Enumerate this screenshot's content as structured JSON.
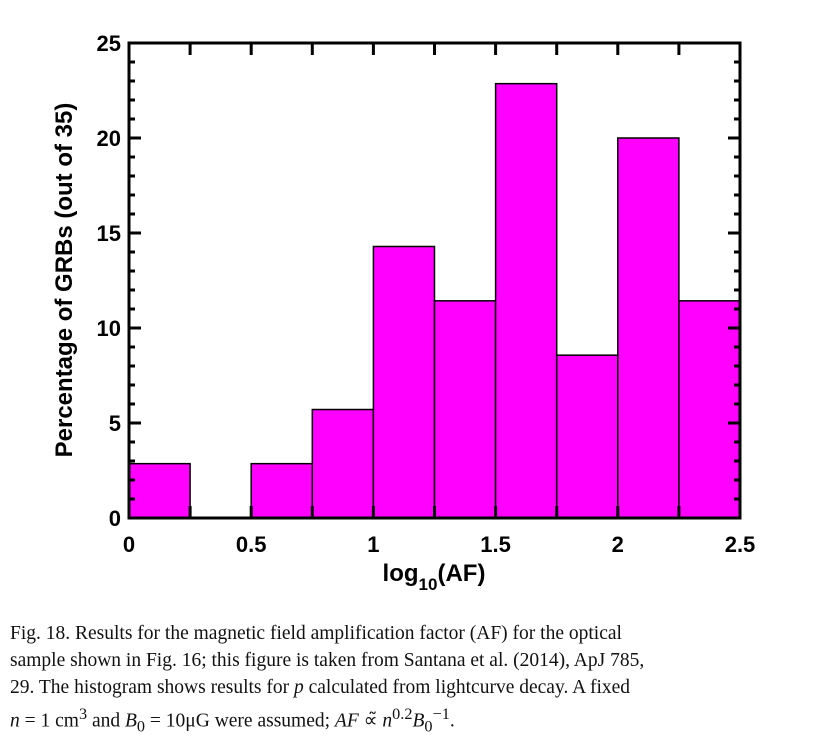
{
  "chart_data": {
    "type": "bar",
    "subtype": "histogram",
    "bin_edges": [
      0,
      0.25,
      0.5,
      0.75,
      1.0,
      1.25,
      1.5,
      1.75,
      2.0,
      2.25,
      2.5
    ],
    "values": [
      2.86,
      0,
      2.86,
      5.71,
      14.29,
      11.43,
      22.86,
      8.57,
      20.0,
      11.43
    ],
    "xlim": [
      0,
      2.5
    ],
    "ylim": [
      0,
      25
    ],
    "xticks": [
      0,
      0.5,
      1,
      1.5,
      2,
      2.5
    ],
    "xtick_labels": [
      "0",
      "0.5",
      "1",
      "1.5",
      "2",
      "2.5"
    ],
    "yticks": [
      0,
      5,
      10,
      15,
      20,
      25
    ],
    "ytick_labels": [
      "0",
      "5",
      "10",
      "15",
      "20",
      "25"
    ],
    "xlabel_main": "log",
    "xlabel_sub": "10",
    "xlabel_tail": "(AF)",
    "ylabel": "Percentage of GRBs (out of 35)",
    "bar_color": "#ff00ff",
    "edge_color": "#000000",
    "grid": false,
    "legend": "none"
  },
  "caption": {
    "line1": "Fig. 18. Results for the magnetic field amplification factor (AF) for the optical",
    "line2": "sample shown in Fig. 16; this figure is taken from Santana et al. (2014), ApJ 785,",
    "line3_a": "29. The histogram shows results for ",
    "line3_p": "p",
    "line3_b": " calculated from lightcurve decay. A fixed",
    "line4_n": "n",
    "line4_eq1": " = 1 cm",
    "line4_exp3": "3",
    "line4_and": " and ",
    "line4_B": "B",
    "line4_B_sub": "0",
    "line4_eq2": " = 10μG were assumed; ",
    "line4_AF": "AF",
    "line4_prop": " ∝̃ ",
    "line4_n2": "n",
    "line4_exp02": "0.2",
    "line4_B2": "B",
    "line4_B2_sub": "0",
    "line4_B2_sup": "−1",
    "line4_end": "."
  }
}
